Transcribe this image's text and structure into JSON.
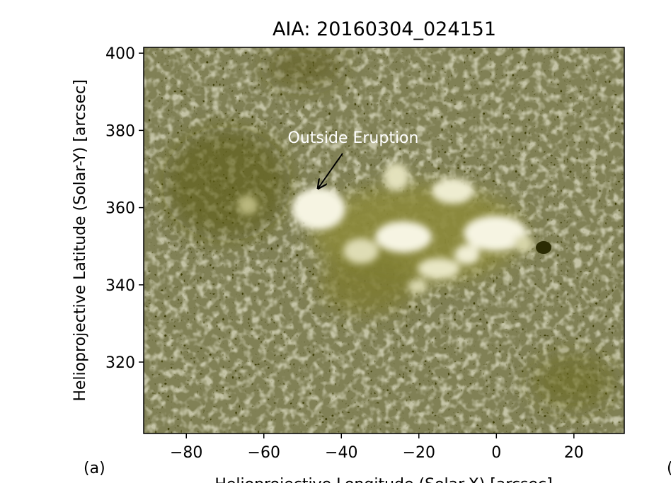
{
  "figure": {
    "title": "AIA: 20160304_024151",
    "xlabel": "Helioprojective Longitude (Solar-X) [arcsec]",
    "ylabel": "Helioprojective Latitude (Solar-Y) [arcsec]",
    "panel_label": "(a)",
    "edge_glyph": "(",
    "annotation": {
      "text": "Outside Eruption",
      "points_to": {
        "x": -46,
        "y": 365
      }
    },
    "xlim": [
      -91,
      33
    ],
    "ylim": [
      301.5,
      401.5
    ],
    "x_ticks": [
      {
        "value": -80,
        "label": "−80"
      },
      {
        "value": -60,
        "label": "−60"
      },
      {
        "value": -40,
        "label": "−40"
      },
      {
        "value": -20,
        "label": "−20"
      },
      {
        "value": 0,
        "label": "0"
      },
      {
        "value": 20,
        "label": "20"
      }
    ],
    "y_ticks": [
      {
        "value": 320,
        "label": "320"
      },
      {
        "value": 340,
        "label": "340"
      },
      {
        "value": 360,
        "label": "360"
      },
      {
        "value": 380,
        "label": "380"
      },
      {
        "value": 400,
        "label": "400"
      }
    ],
    "colors": {
      "dark": "#3d3d05",
      "mid": "#6f6e1c",
      "bright": "#f3f1da",
      "annotation": "#ffffff"
    }
  }
}
